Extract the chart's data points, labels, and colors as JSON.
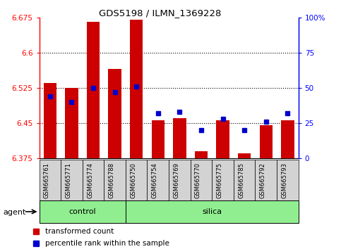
{
  "title": "GDS5198 / ILMN_1369228",
  "samples": [
    "GSM665761",
    "GSM665771",
    "GSM665774",
    "GSM665788",
    "GSM665750",
    "GSM665754",
    "GSM665769",
    "GSM665770",
    "GSM665775",
    "GSM665785",
    "GSM665792",
    "GSM665793"
  ],
  "control_count": 4,
  "silica_count": 8,
  "transformed_counts": [
    6.535,
    6.525,
    6.665,
    6.565,
    6.67,
    6.455,
    6.46,
    6.39,
    6.455,
    6.385,
    6.445,
    6.455
  ],
  "percentile_ranks": [
    44,
    40,
    50,
    47,
    51,
    32,
    33,
    20,
    28,
    20,
    26,
    32
  ],
  "y_min": 6.375,
  "y_max": 6.675,
  "y_ticks": [
    6.375,
    6.45,
    6.525,
    6.6,
    6.675
  ],
  "y2_ticks": [
    0,
    25,
    50,
    75,
    100
  ],
  "bar_color": "#cc0000",
  "percentile_color": "#0000cc",
  "control_color": "#90ee90",
  "silica_color": "#90ee90",
  "agent_label": "agent",
  "control_label": "control",
  "silica_label": "silica",
  "legend_bar_label": "transformed count",
  "legend_pct_label": "percentile rank within the sample",
  "background_color": "#ffffff"
}
